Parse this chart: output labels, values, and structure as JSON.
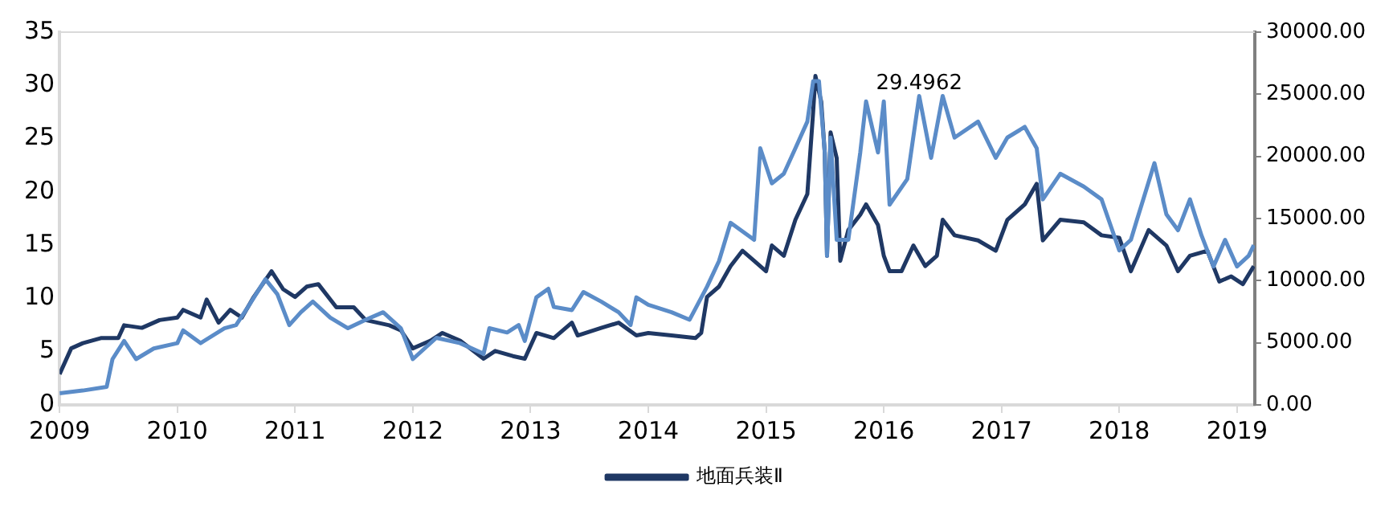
{
  "chart_data": {
    "type": "line",
    "xlim": [
      "2009-01-01",
      "2019-02-25"
    ],
    "xticks": [
      {
        "value": "2009",
        "label": "2009"
      },
      {
        "value": "2010",
        "label": "2010"
      },
      {
        "value": "2011",
        "label": "2011"
      },
      {
        "value": "2012",
        "label": "2012"
      },
      {
        "value": "2013",
        "label": "2013"
      },
      {
        "value": "2014",
        "label": "2014"
      },
      {
        "value": "2015",
        "label": "2015"
      },
      {
        "value": "2016",
        "label": "2016"
      },
      {
        "value": "2017",
        "label": "2017"
      },
      {
        "value": "2018",
        "label": "2018"
      },
      {
        "value": "2019",
        "label": "2019"
      }
    ],
    "ylim": [
      0,
      35
    ],
    "yticks": [
      0,
      5,
      10,
      15,
      20,
      25,
      30,
      35
    ],
    "y2lim": [
      0,
      30000
    ],
    "y2ticks": [
      {
        "value": 0,
        "label": "0.00"
      },
      {
        "value": 5000,
        "label": "5000.00"
      },
      {
        "value": 10000,
        "label": "10000.00"
      },
      {
        "value": 15000,
        "label": "15000.00"
      },
      {
        "value": 20000,
        "label": "20000.00"
      },
      {
        "value": 25000,
        "label": "25000.00"
      },
      {
        "value": 30000,
        "label": "30000.00"
      }
    ],
    "grid": false,
    "legend": "bottom",
    "marker": "none",
    "line_style": "solid",
    "annotations": [
      {
        "text": "29.4962",
        "x": "2016-04-20",
        "y": 29.4962
      }
    ],
    "series": [
      {
        "color": "#5b8cc8",
        "x": [
          "2009-01-01",
          "2009-03-14",
          "2009-05-27",
          "2009-06-14",
          "2009-07-20",
          "2009-08-26",
          "2009-10-20",
          "2010-01-01",
          "2010-01-19",
          "2010-03-14",
          "2010-05-27",
          "2010-07-02",
          "2010-08-08",
          "2010-10-01",
          "2010-11-07",
          "2010-12-14",
          "2011-01-19",
          "2011-02-25",
          "2011-04-20",
          "2011-06-14",
          "2011-08-08",
          "2011-10-01",
          "2011-11-25",
          "2012-01-01",
          "2012-03-14",
          "2012-05-27",
          "2012-08-08",
          "2012-08-26",
          "2012-10-20",
          "2012-11-25",
          "2012-12-14",
          "2013-01-19",
          "2013-02-25",
          "2013-03-14",
          "2013-05-09",
          "2013-06-14",
          "2013-08-08",
          "2013-10-01",
          "2013-11-07",
          "2013-11-25",
          "2014-01-01",
          "2014-03-14",
          "2014-05-09",
          "2014-07-02",
          "2014-08-08",
          "2014-09-13",
          "2014-11-07",
          "2014-11-25",
          "2014-12-14",
          "2015-01-19",
          "2015-02-25",
          "2015-04-02",
          "2015-05-09",
          "2015-05-27",
          "2015-06-14",
          "2015-07-02",
          "2015-07-09",
          "2015-07-20",
          "2015-08-08",
          "2015-09-13",
          "2015-10-20",
          "2015-11-07",
          "2015-12-14",
          "2016-01-01",
          "2016-01-19",
          "2016-03-14",
          "2016-04-20",
          "2016-05-27",
          "2016-07-02",
          "2016-08-08",
          "2016-10-20",
          "2016-12-14",
          "2017-01-19",
          "2017-03-14",
          "2017-04-20",
          "2017-05-09",
          "2017-07-02",
          "2017-09-13",
          "2017-11-07",
          "2018-01-01",
          "2018-02-06",
          "2018-02-25",
          "2018-04-20",
          "2018-05-27",
          "2018-07-02",
          "2018-08-08",
          "2018-09-13",
          "2018-10-20",
          "2018-11-25",
          "2019-01-01",
          "2019-02-06",
          "2019-02-22"
        ],
        "values": [
          1.1,
          1.35,
          1.7,
          4.3,
          6.0,
          4.3,
          5.3,
          5.8,
          7.0,
          5.8,
          7.2,
          7.5,
          9.2,
          11.8,
          10.4,
          7.5,
          8.7,
          9.7,
          8.2,
          7.2,
          8.0,
          8.7,
          7.2,
          4.3,
          6.3,
          5.8,
          4.8,
          7.2,
          6.8,
          7.5,
          6.0,
          10.1,
          10.9,
          9.2,
          8.9,
          10.6,
          9.7,
          8.7,
          7.5,
          10.1,
          9.4,
          8.7,
          8.0,
          11.1,
          13.5,
          17.1,
          15.9,
          15.5,
          24.1,
          20.8,
          21.7,
          24.1,
          26.6,
          30.4,
          30.4,
          23.7,
          14.0,
          25.1,
          15.5,
          15.5,
          23.7,
          28.5,
          23.7,
          28.5,
          18.8,
          21.2,
          29.0,
          23.2,
          29.0,
          25.1,
          26.6,
          23.2,
          25.1,
          26.1,
          24.1,
          19.3,
          21.7,
          20.5,
          19.3,
          14.5,
          15.5,
          17.4,
          22.7,
          17.9,
          16.4,
          19.3,
          15.9,
          13.0,
          15.5,
          13.0,
          14.0,
          15.0
        ]
      },
      {
        "name": "地面兵装Ⅱ",
        "color": "#1f3864",
        "axis": "y2",
        "x": [
          "2009-01-01",
          "2009-02-06",
          "2009-03-14",
          "2009-05-09",
          "2009-07-02",
          "2009-07-20",
          "2009-09-13",
          "2009-11-07",
          "2010-01-01",
          "2010-01-19",
          "2010-03-14",
          "2010-04-02",
          "2010-05-09",
          "2010-06-14",
          "2010-07-20",
          "2010-08-26",
          "2010-10-20",
          "2010-11-25",
          "2011-01-01",
          "2011-02-06",
          "2011-03-14",
          "2011-05-09",
          "2011-07-02",
          "2011-08-08",
          "2011-10-20",
          "2011-11-25",
          "2012-01-01",
          "2012-02-25",
          "2012-04-02",
          "2012-05-27",
          "2012-08-08",
          "2012-09-13",
          "2012-11-07",
          "2012-12-14",
          "2013-01-19",
          "2013-03-14",
          "2013-05-09",
          "2013-05-27",
          "2013-08-08",
          "2013-10-01",
          "2013-11-25",
          "2014-01-01",
          "2014-03-14",
          "2014-05-27",
          "2014-06-14",
          "2014-07-02",
          "2014-08-08",
          "2014-09-13",
          "2014-10-20",
          "2014-11-25",
          "2015-01-01",
          "2015-01-19",
          "2015-02-25",
          "2015-04-02",
          "2015-05-09",
          "2015-05-27",
          "2015-06-03",
          "2015-06-21",
          "2015-07-02",
          "2015-07-09",
          "2015-07-20",
          "2015-08-08",
          "2015-08-19",
          "2015-09-13",
          "2015-10-20",
          "2015-11-07",
          "2015-12-14",
          "2016-01-01",
          "2016-01-19",
          "2016-02-25",
          "2016-04-02",
          "2016-05-09",
          "2016-06-14",
          "2016-07-02",
          "2016-08-08",
          "2016-10-20",
          "2016-12-14",
          "2017-01-19",
          "2017-03-14",
          "2017-04-20",
          "2017-05-09",
          "2017-07-02",
          "2017-09-13",
          "2017-11-07",
          "2018-01-01",
          "2018-02-06",
          "2018-04-02",
          "2018-05-27",
          "2018-07-02",
          "2018-08-08",
          "2018-10-01",
          "2018-11-07",
          "2018-12-14",
          "2019-01-19",
          "2019-02-22"
        ],
        "values": [
          2480,
          4550,
          4970,
          5380,
          5380,
          6410,
          6200,
          6830,
          7030,
          7650,
          7030,
          8480,
          6620,
          7650,
          7030,
          8690,
          10760,
          9310,
          8690,
          9520,
          9720,
          7860,
          7860,
          6830,
          6410,
          6000,
          4550,
          5170,
          5790,
          5170,
          3720,
          4340,
          3930,
          3720,
          5790,
          5380,
          6620,
          5590,
          6200,
          6620,
          5590,
          5790,
          5590,
          5380,
          5790,
          8690,
          9520,
          11170,
          12410,
          11590,
          10760,
          12830,
          12000,
          14900,
          16970,
          23590,
          26480,
          24410,
          20280,
          12000,
          21930,
          19860,
          11590,
          14070,
          15310,
          16140,
          14480,
          12000,
          10760,
          10760,
          12830,
          11170,
          12000,
          14900,
          13650,
          13240,
          12410,
          14900,
          16140,
          17790,
          13240,
          14900,
          14690,
          13650,
          13450,
          10760,
          14070,
          12830,
          10760,
          12000,
          12410,
          9930,
          10340,
          9720,
          11170
        ]
      }
    ]
  }
}
